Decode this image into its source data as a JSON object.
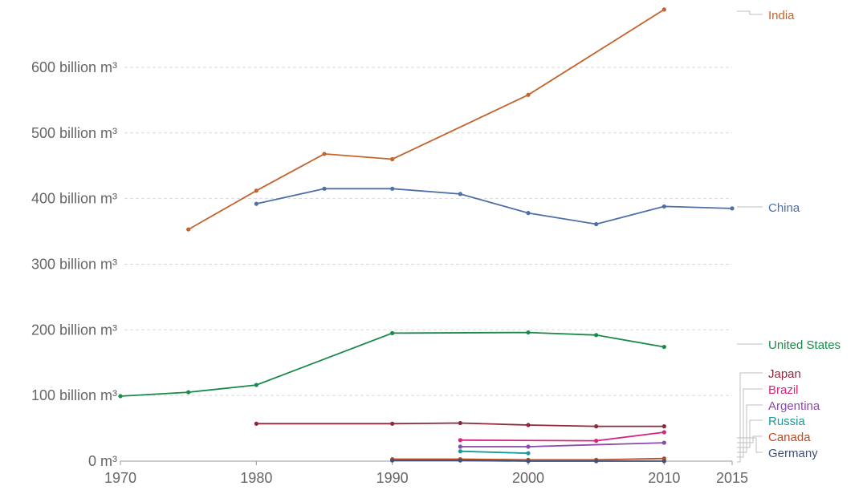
{
  "chart_data": {
    "type": "line",
    "x_ticks": [
      "1970",
      "1980",
      "1990",
      "2000",
      "2010",
      "2015"
    ],
    "xlim": [
      1970,
      2015
    ],
    "y_ticks": [
      {
        "value": 0,
        "label": "0 m³"
      },
      {
        "value": 100,
        "label": "100 billion m³"
      },
      {
        "value": 200,
        "label": "200 billion m³"
      },
      {
        "value": 300,
        "label": "300 billion m³"
      },
      {
        "value": 400,
        "label": "400 billion m³"
      },
      {
        "value": 500,
        "label": "500 billion m³"
      },
      {
        "value": 600,
        "label": "600 billion m³"
      }
    ],
    "ylim": [
      0,
      700
    ],
    "grid": true,
    "legend": "right, labels at line ends",
    "series": [
      {
        "name": "India",
        "color": "#c4632c",
        "points": [
          [
            1975,
            353
          ],
          [
            1980,
            412
          ],
          [
            1985,
            468
          ],
          [
            1990,
            460
          ],
          [
            2000,
            558
          ],
          [
            2010,
            688
          ]
        ]
      },
      {
        "name": "China",
        "color": "#4e6fa8",
        "points": [
          [
            1980,
            392
          ],
          [
            1985,
            415
          ],
          [
            1990,
            415
          ],
          [
            1995,
            407
          ],
          [
            2000,
            378
          ],
          [
            2005,
            361
          ],
          [
            2010,
            388
          ],
          [
            2015,
            385
          ]
        ]
      },
      {
        "name": "United States",
        "color": "#1a8a4a",
        "points": [
          [
            1970,
            99
          ],
          [
            1975,
            105
          ],
          [
            1980,
            116
          ],
          [
            1990,
            195
          ],
          [
            2000,
            196
          ],
          [
            2005,
            192
          ],
          [
            2010,
            174
          ]
        ]
      },
      {
        "name": "Japan",
        "color": "#8c2a3c",
        "points": [
          [
            1980,
            57
          ],
          [
            1990,
            57
          ],
          [
            1995,
            58
          ],
          [
            2000,
            55
          ],
          [
            2005,
            53
          ],
          [
            2010,
            53
          ]
        ]
      },
      {
        "name": "Brazil",
        "color": "#d6257e",
        "points": [
          [
            1995,
            32
          ],
          [
            2005,
            31
          ],
          [
            2010,
            44
          ]
        ]
      },
      {
        "name": "Argentina",
        "color": "#8b4aa8",
        "points": [
          [
            1995,
            22
          ],
          [
            2000,
            22
          ],
          [
            2010,
            28
          ]
        ]
      },
      {
        "name": "Russia",
        "color": "#1a9a9a",
        "points": [
          [
            1995,
            15
          ],
          [
            2000,
            12
          ]
        ]
      },
      {
        "name": "Canada",
        "color": "#c44a1e",
        "points": [
          [
            1990,
            3
          ],
          [
            1995,
            3
          ],
          [
            2000,
            2
          ],
          [
            2005,
            2
          ],
          [
            2010,
            4
          ]
        ]
      },
      {
        "name": "Germany",
        "color": "#3d5278",
        "points": [
          [
            1990,
            1
          ],
          [
            1995,
            1
          ],
          [
            2000,
            0
          ],
          [
            2005,
            0
          ],
          [
            2010,
            0
          ]
        ]
      }
    ]
  }
}
